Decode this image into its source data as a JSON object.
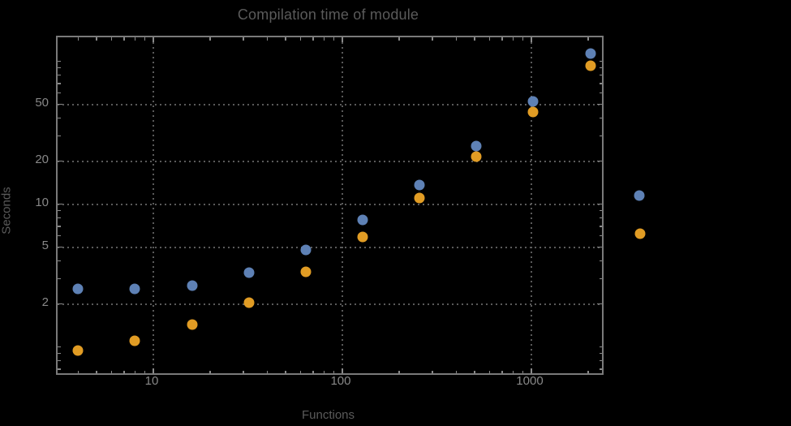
{
  "chart_data": {
    "type": "scatter",
    "title": "Compilation time of module",
    "xlabel": "Functions",
    "ylabel": "Seconds",
    "x_scale": "log",
    "y_scale": "log",
    "xlim": [
      3.1,
      2360
    ],
    "ylim": [
      0.63,
      147
    ],
    "grid": "dotted",
    "x": [
      4,
      8,
      16,
      32,
      64,
      128,
      256,
      512,
      1024,
      2048
    ],
    "series": [
      {
        "name": "series-1-blue",
        "color": "#5e81b5",
        "values": [
          2.55,
          2.55,
          2.7,
          3.3,
          4.8,
          7.8,
          13.7,
          25.5,
          52.5,
          114
        ]
      },
      {
        "name": "series-2-orange",
        "color": "#e19c24",
        "values": [
          0.94,
          1.1,
          1.43,
          2.04,
          3.35,
          5.9,
          11.1,
          21.5,
          44,
          93
        ]
      }
    ],
    "x_ticks_labeled": [
      10,
      100,
      1000
    ],
    "x_tick_label_texts": [
      "10",
      "100",
      "1000"
    ],
    "x_ticks_minor": [
      4,
      5,
      6,
      7,
      8,
      9,
      20,
      30,
      40,
      50,
      60,
      70,
      80,
      90,
      200,
      300,
      400,
      500,
      600,
      700,
      800,
      900,
      2000
    ],
    "y_ticks_labeled": [
      2,
      5,
      10,
      20,
      50
    ],
    "y_tick_label_texts": [
      "2",
      "5",
      "10",
      "20",
      "50"
    ],
    "y_ticks_minor": [
      0.7,
      0.8,
      0.9,
      1,
      3,
      4,
      6,
      7,
      8,
      9,
      30,
      40,
      60,
      70,
      80,
      90,
      100
    ],
    "legend_position": "right-outside",
    "legend_markers": [
      {
        "name": "legend-marker-series-1",
        "color": "#5e81b5"
      },
      {
        "name": "legend-marker-series-2",
        "color": "#e19c24"
      }
    ],
    "colors": {
      "background": "#000000",
      "frame": "#7a7a7a",
      "grid": "#5a5a5a",
      "tick_labels": "#888888",
      "title_text": "#5a5a5a"
    }
  }
}
